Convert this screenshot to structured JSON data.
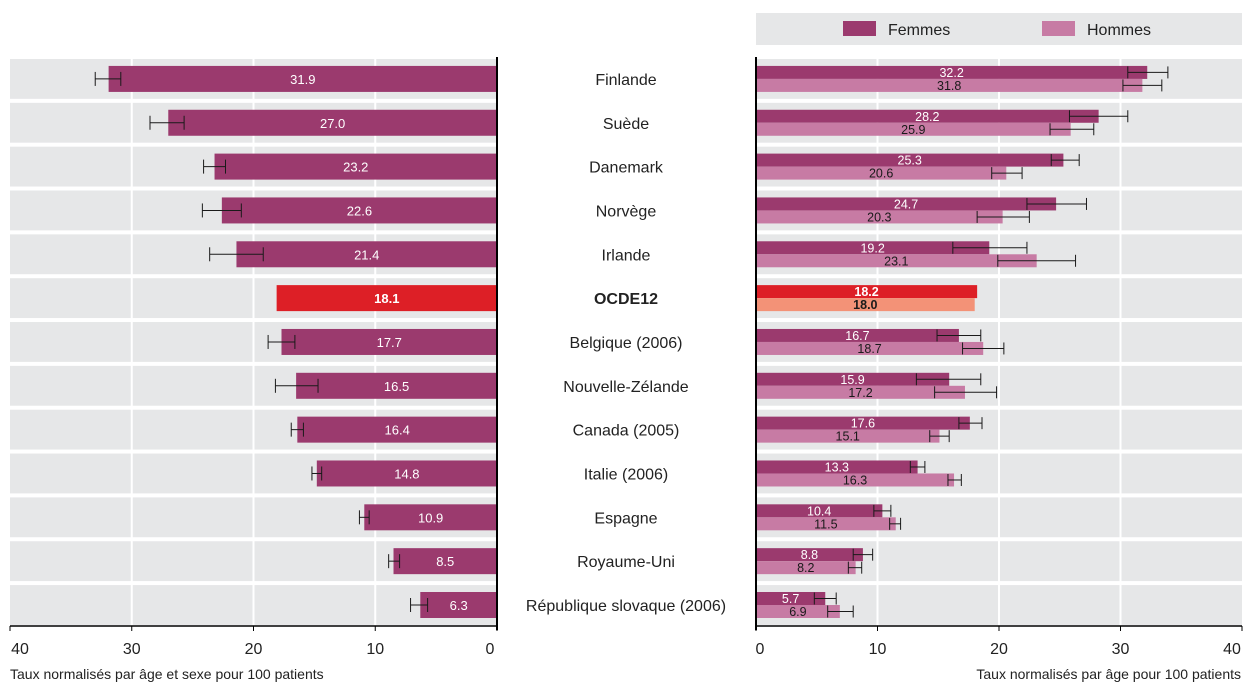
{
  "chart_data": [
    {
      "type": "bar",
      "orientation": "horizontal",
      "x_direction": "reversed",
      "xlim": [
        0,
        40
      ],
      "xticks": [
        "40",
        "30",
        "20",
        "10",
        "0"
      ],
      "xlabel": "Taux normalisés par âge et sexe pour 100 patients",
      "grid": true,
      "categories": [
        "Finlande",
        "Suède",
        "Danemark",
        "Norvège",
        "Irlande",
        "OCDE12",
        "Belgique (2006)",
        "Nouvelle-Zélande",
        "Canada (2005)",
        "Italie (2006)",
        "Espagne",
        "Royaume-Uni",
        "République slovaque (2006)"
      ],
      "values": [
        31.9,
        27.0,
        23.2,
        22.6,
        21.4,
        18.1,
        17.7,
        16.5,
        16.4,
        14.8,
        10.9,
        8.5,
        6.3
      ],
      "labels": [
        "31.9",
        "27.0",
        "23.2",
        "22.6",
        "21.4",
        "18.1",
        "17.7",
        "16.5",
        "16.4",
        "14.8",
        "10.9",
        "8.5",
        "6.3"
      ],
      "error_low": [
        30.9,
        25.7,
        22.3,
        21.0,
        19.2,
        null,
        16.6,
        14.7,
        15.9,
        14.4,
        10.5,
        8.0,
        5.7
      ],
      "error_high": [
        33.0,
        28.5,
        24.1,
        24.2,
        23.6,
        null,
        18.8,
        18.2,
        16.9,
        15.2,
        11.3,
        8.9,
        7.1
      ],
      "highlight_category": "OCDE12",
      "colors": {
        "bar": "#9b3a6e",
        "highlight": "#dd1f26"
      }
    },
    {
      "type": "bar",
      "orientation": "horizontal",
      "xlim": [
        0,
        40
      ],
      "xticks": [
        "0",
        "10",
        "20",
        "30",
        "40"
      ],
      "xlabel": "Taux normalisés par âge pour 100 patients",
      "grid": true,
      "legend_position": "top",
      "categories": [
        "Finlande",
        "Suède",
        "Danemark",
        "Norvège",
        "Irlande",
        "OCDE12",
        "Belgique (2006)",
        "Nouvelle-Zélande",
        "Canada (2005)",
        "Italie (2006)",
        "Espagne",
        "Royaume-Uni",
        "République slovaque (2006)"
      ],
      "series": [
        {
          "name": "Femmes",
          "color": "#9b3a6e",
          "highlight_color": "#dd1f26",
          "values": [
            32.2,
            28.2,
            25.3,
            24.7,
            19.2,
            18.2,
            16.7,
            15.9,
            17.6,
            13.3,
            10.4,
            8.8,
            5.7
          ],
          "labels": [
            "32.2",
            "28.2",
            "25.3",
            "24.7",
            "19.2",
            "18.2",
            "16.7",
            "15.9",
            "17.6",
            "13.3",
            "10.4",
            "8.8",
            "5.7"
          ],
          "error_low": [
            30.6,
            25.8,
            24.3,
            22.3,
            16.2,
            null,
            14.9,
            13.2,
            16.7,
            12.7,
            9.7,
            8.0,
            4.8
          ],
          "error_high": [
            33.9,
            30.6,
            26.6,
            27.2,
            22.3,
            null,
            18.5,
            18.5,
            18.6,
            13.9,
            11.1,
            9.6,
            6.6
          ]
        },
        {
          "name": "Hommes",
          "color": "#c77ba4",
          "highlight_color": "#f39277",
          "values": [
            31.8,
            25.9,
            20.6,
            20.3,
            23.1,
            18.0,
            18.7,
            17.2,
            15.1,
            16.3,
            11.5,
            8.2,
            6.9
          ],
          "labels": [
            "31.8",
            "25.9",
            "20.6",
            "20.3",
            "23.1",
            "18.0",
            "18.7",
            "17.2",
            "15.1",
            "16.3",
            "11.5",
            "8.2",
            "6.9"
          ],
          "error_low": [
            30.2,
            24.2,
            19.4,
            18.2,
            19.9,
            null,
            17.0,
            14.7,
            14.3,
            15.8,
            11.0,
            7.6,
            5.9
          ],
          "error_high": [
            33.4,
            27.8,
            21.9,
            22.5,
            26.3,
            null,
            20.4,
            19.8,
            15.9,
            16.9,
            11.9,
            8.7,
            8.0
          ]
        }
      ],
      "highlight_category": "OCDE12"
    }
  ],
  "colors": {
    "band": "#e6e7e8",
    "grid": "#ffffff",
    "axis": "#000000",
    "label_light": "#ffffff",
    "label_dark": "#1a1a1a"
  }
}
